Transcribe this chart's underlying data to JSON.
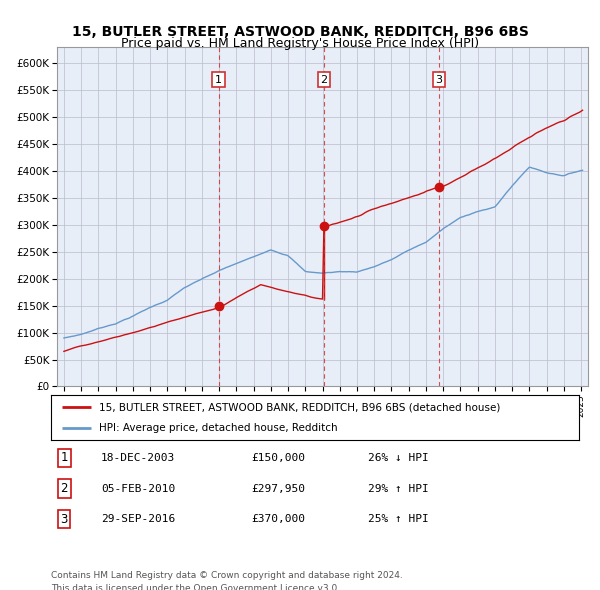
{
  "title1": "15, BUTLER STREET, ASTWOOD BANK, REDDITCH, B96 6BS",
  "title2": "Price paid vs. HM Land Registry's House Price Index (HPI)",
  "legend_label_red": "15, BUTLER STREET, ASTWOOD BANK, REDDITCH, B96 6BS (detached house)",
  "legend_label_blue": "HPI: Average price, detached house, Redditch",
  "footer1": "Contains HM Land Registry data © Crown copyright and database right 2024.",
  "footer2": "This data is licensed under the Open Government Licence v3.0.",
  "sale_points": [
    {
      "label": "1",
      "date": "18-DEC-2003",
      "price": 150000,
      "pct": "26%",
      "dir": "↓",
      "x_year": 2003.97
    },
    {
      "label": "2",
      "date": "05-FEB-2010",
      "price": 297950,
      "pct": "29%",
      "dir": "↑",
      "x_year": 2010.09
    },
    {
      "label": "3",
      "date": "29-SEP-2016",
      "price": 370000,
      "pct": "25%",
      "dir": "↑",
      "x_year": 2016.75
    }
  ],
  "ylim": [
    0,
    630000
  ],
  "yticks": [
    0,
    50000,
    100000,
    150000,
    200000,
    250000,
    300000,
    350000,
    400000,
    450000,
    500000,
    550000,
    600000
  ],
  "xlim_start": 1994.6,
  "xlim_end": 2025.4,
  "plot_bg": "#e8eef8",
  "grid_color": "#bbbbcc",
  "red_color": "#cc1111",
  "blue_color": "#6699cc",
  "vline_color": "#cc3333",
  "title_fontsize": 10,
  "subtitle_fontsize": 9
}
